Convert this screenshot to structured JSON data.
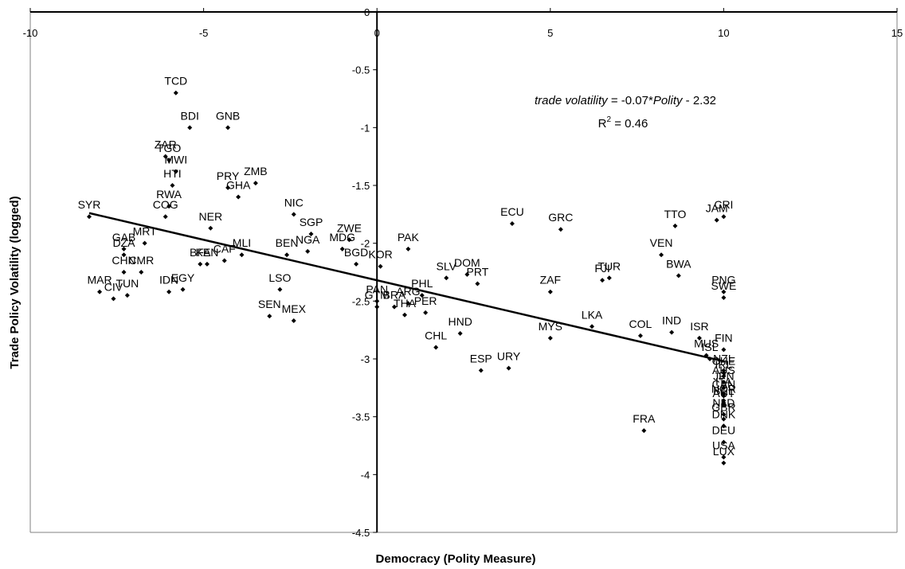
{
  "chart_data": {
    "type": "scatter",
    "title": "",
    "xlabel": "Democracy (Polity Measure)",
    "ylabel": "Trade Policy Volatility (logged)",
    "xlim": [
      -10,
      15
    ],
    "ylim": [
      -4.5,
      0
    ],
    "xticks": [
      "-10",
      "-5",
      "0",
      "5",
      "10",
      "15"
    ],
    "yticks": [
      "0",
      "-0.5",
      "-1",
      "-1.5",
      "-2",
      "-2.5",
      "-3",
      "-3.5",
      "-4",
      "-4.5"
    ],
    "grid": false,
    "legend": "none",
    "marker_color": "#000000",
    "equation": {
      "lhs": "trade volatility",
      "mid": " = -0.07*",
      "var": "Polity",
      "rhs": " - 2.32",
      "r2_base": "R",
      "r2_sup": "2",
      "r2_value": " = 0.46"
    },
    "trendline": {
      "slope": -0.07,
      "intercept": -2.32,
      "x_range": [
        -8.3,
        10
      ]
    },
    "points": [
      {
        "label": "TCD",
        "x": -5.8,
        "y": -0.7
      },
      {
        "label": "BDI",
        "x": -5.4,
        "y": -1.0
      },
      {
        "label": "GNB",
        "x": -4.3,
        "y": -1.0
      },
      {
        "label": "ZAR",
        "x": -6.1,
        "y": -1.25
      },
      {
        "label": "TGO",
        "x": -6.0,
        "y": -1.28
      },
      {
        "label": "MWI",
        "x": -5.8,
        "y": -1.38
      },
      {
        "label": "HTI",
        "x": -5.9,
        "y": -1.5
      },
      {
        "label": "RWA",
        "x": -6.0,
        "y": -1.68
      },
      {
        "label": "PRY",
        "x": -4.3,
        "y": -1.52
      },
      {
        "label": "ZMB",
        "x": -3.5,
        "y": -1.48
      },
      {
        "label": "GHA",
        "x": -4.0,
        "y": -1.6
      },
      {
        "label": "SYR",
        "x": -8.3,
        "y": -1.77
      },
      {
        "label": "COG",
        "x": -6.1,
        "y": -1.77
      },
      {
        "label": "NIC",
        "x": -2.4,
        "y": -1.75
      },
      {
        "label": "NER",
        "x": -4.8,
        "y": -1.87
      },
      {
        "label": "SGP",
        "x": -1.9,
        "y": -1.92
      },
      {
        "label": "ZWE",
        "x": -0.8,
        "y": -1.97
      },
      {
        "label": "MDG",
        "x": -1.0,
        "y": -2.05
      },
      {
        "label": "BGD",
        "x": -0.6,
        "y": -2.18
      },
      {
        "label": "KOR",
        "x": 0.1,
        "y": -2.2
      },
      {
        "label": "PAK",
        "x": 0.9,
        "y": -2.05
      },
      {
        "label": "GAB",
        "x": -7.3,
        "y": -2.05
      },
      {
        "label": "MRT",
        "x": -6.7,
        "y": -2.0
      },
      {
        "label": "DZA",
        "x": -7.3,
        "y": -2.1
      },
      {
        "label": "CHN",
        "x": -7.3,
        "y": -2.25
      },
      {
        "label": "CMR",
        "x": -6.8,
        "y": -2.25
      },
      {
        "label": "MLI",
        "x": -3.9,
        "y": -2.1
      },
      {
        "label": "BEN",
        "x": -2.6,
        "y": -2.1
      },
      {
        "label": "NGA",
        "x": -2.0,
        "y": -2.07
      },
      {
        "label": "BFA",
        "x": -5.1,
        "y": -2.18
      },
      {
        "label": "KEN",
        "x": -4.9,
        "y": -2.18
      },
      {
        "label": "CAF",
        "x": -4.4,
        "y": -2.15
      },
      {
        "label": "MAR",
        "x": -8.0,
        "y": -2.42
      },
      {
        "label": "TUN",
        "x": -7.2,
        "y": -2.45
      },
      {
        "label": "CIV",
        "x": -7.6,
        "y": -2.48
      },
      {
        "label": "IDN",
        "x": -6.0,
        "y": -2.42
      },
      {
        "label": "EGY",
        "x": -5.6,
        "y": -2.4
      },
      {
        "label": "LSO",
        "x": -2.8,
        "y": -2.4
      },
      {
        "label": "SEN",
        "x": -3.1,
        "y": -2.63
      },
      {
        "label": "MEX",
        "x": -2.4,
        "y": -2.67
      },
      {
        "label": "PAN",
        "x": 0.0,
        "y": -2.5
      },
      {
        "label": "GTM",
        "x": 0.0,
        "y": -2.55
      },
      {
        "label": "BRA",
        "x": 0.5,
        "y": -2.55
      },
      {
        "label": "ARG",
        "x": 0.9,
        "y": -2.52
      },
      {
        "label": "PHL",
        "x": 1.3,
        "y": -2.45
      },
      {
        "label": "THA",
        "x": 0.8,
        "y": -2.62
      },
      {
        "label": "PER",
        "x": 1.4,
        "y": -2.6
      },
      {
        "label": "SLV",
        "x": 2.0,
        "y": -2.3
      },
      {
        "label": "DOM",
        "x": 2.6,
        "y": -2.27
      },
      {
        "label": "PRT",
        "x": 2.9,
        "y": -2.35
      },
      {
        "label": "CHL",
        "x": 1.7,
        "y": -2.9
      },
      {
        "label": "HND",
        "x": 2.4,
        "y": -2.78
      },
      {
        "label": "ESP",
        "x": 3.0,
        "y": -3.1
      },
      {
        "label": "URY",
        "x": 3.8,
        "y": -3.08
      },
      {
        "label": "ECU",
        "x": 3.9,
        "y": -1.83
      },
      {
        "label": "GRC",
        "x": 5.3,
        "y": -1.88
      },
      {
        "label": "ZAF",
        "x": 5.0,
        "y": -2.42
      },
      {
        "label": "MYS",
        "x": 5.0,
        "y": -2.82
      },
      {
        "label": "LKA",
        "x": 6.2,
        "y": -2.72
      },
      {
        "label": "TUR",
        "x": 6.7,
        "y": -2.3
      },
      {
        "label": "FJI",
        "x": 6.5,
        "y": -2.32
      },
      {
        "label": "TTO",
        "x": 8.6,
        "y": -1.85
      },
      {
        "label": "VEN",
        "x": 8.2,
        "y": -2.1
      },
      {
        "label": "BWA",
        "x": 8.7,
        "y": -2.28
      },
      {
        "label": "COL",
        "x": 7.6,
        "y": -2.8
      },
      {
        "label": "IND",
        "x": 8.5,
        "y": -2.77
      },
      {
        "label": "FRA",
        "x": 7.7,
        "y": -3.62
      },
      {
        "label": "CRI",
        "x": 10.0,
        "y": -1.77
      },
      {
        "label": "JAM",
        "x": 9.8,
        "y": -1.8
      },
      {
        "label": "PNG",
        "x": 10.0,
        "y": -2.42
      },
      {
        "label": "SWE",
        "x": 10.0,
        "y": -2.47
      },
      {
        "label": "ISR",
        "x": 9.3,
        "y": -2.82
      },
      {
        "label": "FIN",
        "x": 10.0,
        "y": -2.92
      },
      {
        "label": "MUS",
        "x": 9.5,
        "y": -2.97
      },
      {
        "label": "ISL",
        "x": 9.6,
        "y": -3.0
      },
      {
        "label": "NZL",
        "x": 10.0,
        "y": -3.1
      },
      {
        "label": "CHE",
        "x": 10.0,
        "y": -3.12
      },
      {
        "label": "IRL",
        "x": 10.0,
        "y": -3.15
      },
      {
        "label": "AUS",
        "x": 10.0,
        "y": -3.2
      },
      {
        "label": "JPN",
        "x": 10.0,
        "y": -3.25
      },
      {
        "label": "ITA",
        "x": 10.0,
        "y": -3.3
      },
      {
        "label": "CAN",
        "x": 10.0,
        "y": -3.32
      },
      {
        "label": "NOR",
        "x": 10.0,
        "y": -3.36
      },
      {
        "label": "BEL",
        "x": 10.0,
        "y": -3.38
      },
      {
        "label": "AUT",
        "x": 10.0,
        "y": -3.4
      },
      {
        "label": "NLD",
        "x": 10.0,
        "y": -3.48
      },
      {
        "label": "GBR",
        "x": 10.0,
        "y": -3.52
      },
      {
        "label": "DNK",
        "x": 10.0,
        "y": -3.58
      },
      {
        "label": "DEU",
        "x": 10.0,
        "y": -3.72
      },
      {
        "label": "USA",
        "x": 10.0,
        "y": -3.85
      },
      {
        "label": "LUX",
        "x": 10.0,
        "y": -3.9
      }
    ]
  }
}
